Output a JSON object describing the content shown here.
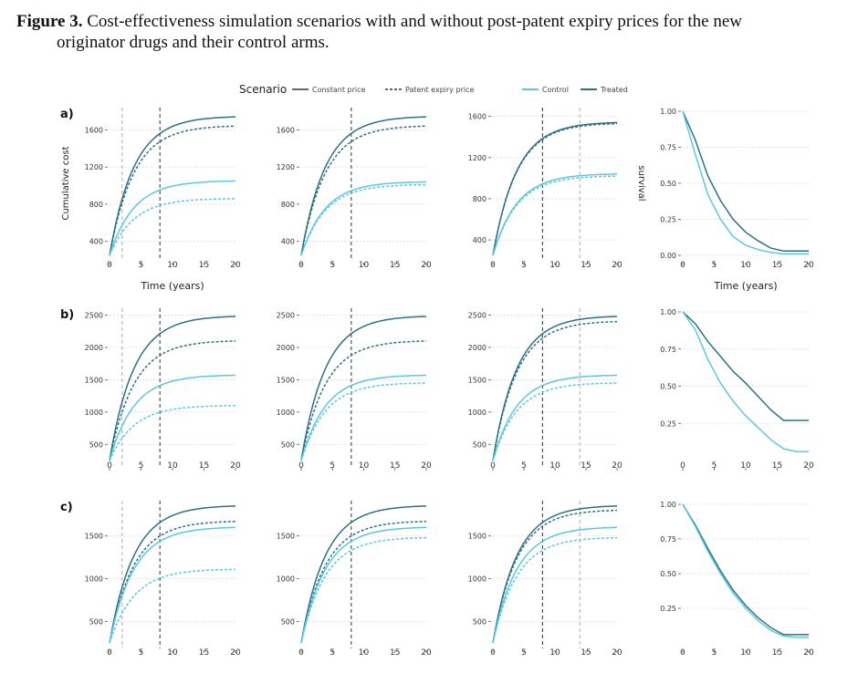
{
  "figure": {
    "label": "Figure 3.",
    "caption_line1": "Cost-effectiveness simulation scenarios with and without post-patent expiry prices for the new",
    "caption_line2": "originator drugs and their control arms."
  },
  "legend": {
    "title": "Scenario",
    "linetype_items": [
      "Constant price",
      "Patent expiry price"
    ],
    "color_items": [
      "Control",
      "Treated"
    ]
  },
  "colors": {
    "control": "#5ac8e2",
    "treated": "#2f6f86",
    "vline_dark": "#444444",
    "vline_light": "#b4b4b4",
    "grid": "#cfcfcf"
  },
  "chart_data": {
    "type": "line",
    "xlabel": "Time (years)",
    "xlim": [
      0,
      20
    ],
    "x_ticks": [
      0,
      5,
      10,
      15,
      20
    ],
    "x_tick_labels": [
      "0",
      "5",
      "10",
      "15",
      "20"
    ],
    "rows": [
      {
        "label": "a)",
        "cost_ylabel": "Cumulative cost",
        "survival_ylabel": "survival",
        "panels": [
          {
            "ylim": [
              250,
              1800
            ],
            "yticks": [
              400,
              800,
              1200,
              1600
            ],
            "ytick_labels": [
              "400",
              "800",
              "1200",
              "1600"
            ],
            "vlines": {
              "dark": 8,
              "light": 2
            },
            "series": [
              {
                "arm": "treated",
                "price": "constant",
                "end": 1740
              },
              {
                "arm": "treated",
                "price": "patent",
                "end": 1640
              },
              {
                "arm": "control",
                "price": "constant",
                "end": 1050
              },
              {
                "arm": "control",
                "price": "patent",
                "end": 860
              }
            ]
          },
          {
            "ylim": [
              250,
              1800
            ],
            "yticks": [
              400,
              800,
              1200,
              1600
            ],
            "ytick_labels": [
              "400",
              "800",
              "1200",
              "1600"
            ],
            "vlines": {
              "dark": 8
            },
            "series": [
              {
                "arm": "treated",
                "price": "constant",
                "end": 1740
              },
              {
                "arm": "treated",
                "price": "patent",
                "end": 1640
              },
              {
                "arm": "control",
                "price": "constant",
                "end": 1040
              },
              {
                "arm": "control",
                "price": "patent",
                "end": 1010
              }
            ]
          },
          {
            "ylim": [
              250,
              1650
            ],
            "yticks": [
              400,
              800,
              1200,
              1600
            ],
            "ytick_labels": [
              "400",
              "800",
              "1200",
              "1600"
            ],
            "vlines": {
              "dark": 8,
              "light": 14
            },
            "series": [
              {
                "arm": "treated",
                "price": "constant",
                "end": 1540
              },
              {
                "arm": "treated",
                "price": "patent",
                "end": 1530
              },
              {
                "arm": "control",
                "price": "constant",
                "end": 1040
              },
              {
                "arm": "control",
                "price": "patent",
                "end": 1020
              }
            ]
          }
        ],
        "survival": {
          "ylim": [
            0,
            1
          ],
          "yticks": [
            0,
            0.25,
            0.5,
            0.75,
            1
          ],
          "ytick_labels": [
            "0.00",
            "0.25",
            "0.50",
            "0.75",
            "1.00"
          ],
          "show_xlabel": true,
          "treated": [
            [
              0,
              1
            ],
            [
              2,
              0.8
            ],
            [
              4,
              0.55
            ],
            [
              6,
              0.38
            ],
            [
              8,
              0.25
            ],
            [
              10,
              0.16
            ],
            [
              12,
              0.1
            ],
            [
              14,
              0.05
            ],
            [
              16,
              0.03
            ],
            [
              18,
              0.03
            ],
            [
              20,
              0.03
            ]
          ],
          "control": [
            [
              0,
              1
            ],
            [
              2,
              0.7
            ],
            [
              4,
              0.42
            ],
            [
              6,
              0.25
            ],
            [
              8,
              0.13
            ],
            [
              10,
              0.07
            ],
            [
              12,
              0.04
            ],
            [
              14,
              0.02
            ],
            [
              16,
              0.01
            ],
            [
              18,
              0.01
            ],
            [
              20,
              0.01
            ]
          ]
        }
      },
      {
        "label": "b)",
        "panels": [
          {
            "ylim": [
              250,
              2550
            ],
            "yticks": [
              500,
              1000,
              1500,
              2000,
              2500
            ],
            "ytick_labels": [
              "500",
              "1000",
              "1500",
              "2000",
              "2500"
            ],
            "vlines": {
              "dark": 8,
              "light": 2
            },
            "series": [
              {
                "arm": "treated",
                "price": "constant",
                "end": 2480
              },
              {
                "arm": "treated",
                "price": "patent",
                "end": 2100
              },
              {
                "arm": "control",
                "price": "constant",
                "end": 1570
              },
              {
                "arm": "control",
                "price": "patent",
                "end": 1100
              }
            ]
          },
          {
            "ylim": [
              250,
              2550
            ],
            "yticks": [
              500,
              1000,
              1500,
              2000,
              2500
            ],
            "ytick_labels": [
              "500",
              "1000",
              "1500",
              "2000",
              "2500"
            ],
            "vlines": {
              "dark": 8
            },
            "series": [
              {
                "arm": "treated",
                "price": "constant",
                "end": 2480
              },
              {
                "arm": "treated",
                "price": "patent",
                "end": 2100
              },
              {
                "arm": "control",
                "price": "constant",
                "end": 1570
              },
              {
                "arm": "control",
                "price": "patent",
                "end": 1450
              }
            ]
          },
          {
            "ylim": [
              250,
              2550
            ],
            "yticks": [
              500,
              1000,
              1500,
              2000,
              2500
            ],
            "ytick_labels": [
              "500",
              "1000",
              "1500",
              "2000",
              "2500"
            ],
            "vlines": {
              "dark": 8,
              "light": 14
            },
            "series": [
              {
                "arm": "treated",
                "price": "constant",
                "end": 2480
              },
              {
                "arm": "treated",
                "price": "patent",
                "end": 2400
              },
              {
                "arm": "control",
                "price": "constant",
                "end": 1570
              },
              {
                "arm": "control",
                "price": "patent",
                "end": 1450
              }
            ]
          }
        ],
        "survival": {
          "ylim": [
            0,
            1
          ],
          "yticks": [
            0.25,
            0.5,
            0.75,
            1
          ],
          "ytick_labels": [
            "0.25",
            "0.50",
            "0.75",
            "1.00"
          ],
          "show_xlabel": false,
          "treated": [
            [
              0,
              1
            ],
            [
              2,
              0.92
            ],
            [
              4,
              0.8
            ],
            [
              6,
              0.7
            ],
            [
              8,
              0.6
            ],
            [
              10,
              0.52
            ],
            [
              12,
              0.43
            ],
            [
              14,
              0.34
            ],
            [
              16,
              0.27
            ],
            [
              18,
              0.27
            ],
            [
              20,
              0.27
            ]
          ],
          "control": [
            [
              0,
              1
            ],
            [
              2,
              0.88
            ],
            [
              4,
              0.68
            ],
            [
              6,
              0.52
            ],
            [
              8,
              0.4
            ],
            [
              10,
              0.3
            ],
            [
              12,
              0.22
            ],
            [
              14,
              0.14
            ],
            [
              16,
              0.08
            ],
            [
              18,
              0.06
            ],
            [
              20,
              0.06
            ]
          ]
        }
      },
      {
        "label": "c)",
        "panels": [
          {
            "ylim": [
              250,
              1870
            ],
            "yticks": [
              500,
              1000,
              1500
            ],
            "ytick_labels": [
              "500",
              "1000",
              "1500"
            ],
            "vlines": {
              "dark": 8,
              "light": 2
            },
            "series": [
              {
                "arm": "treated",
                "price": "constant",
                "end": 1850
              },
              {
                "arm": "treated",
                "price": "patent",
                "end": 1670
              },
              {
                "arm": "control",
                "price": "constant",
                "end": 1600
              },
              {
                "arm": "control",
                "price": "patent",
                "end": 1110
              }
            ]
          },
          {
            "ylim": [
              250,
              1870
            ],
            "yticks": [
              500,
              1000,
              1500
            ],
            "ytick_labels": [
              "500",
              "1000",
              "1500"
            ],
            "vlines": {
              "dark": 8
            },
            "series": [
              {
                "arm": "treated",
                "price": "constant",
                "end": 1850
              },
              {
                "arm": "treated",
                "price": "patent",
                "end": 1670
              },
              {
                "arm": "control",
                "price": "constant",
                "end": 1600
              },
              {
                "arm": "control",
                "price": "patent",
                "end": 1480
              }
            ]
          },
          {
            "ylim": [
              250,
              1870
            ],
            "yticks": [
              500,
              1000,
              1500
            ],
            "ytick_labels": [
              "500",
              "1000",
              "1500"
            ],
            "vlines": {
              "dark": 8,
              "light": 14
            },
            "series": [
              {
                "arm": "treated",
                "price": "constant",
                "end": 1850
              },
              {
                "arm": "treated",
                "price": "patent",
                "end": 1800
              },
              {
                "arm": "control",
                "price": "constant",
                "end": 1600
              },
              {
                "arm": "control",
                "price": "patent",
                "end": 1480
              }
            ]
          }
        ],
        "survival": {
          "ylim": [
            0,
            1
          ],
          "yticks": [
            0.25,
            0.5,
            0.75,
            1
          ],
          "ytick_labels": [
            "0.25",
            "0.50",
            "0.75",
            "1.00"
          ],
          "show_xlabel": false,
          "treated": [
            [
              0,
              1
            ],
            [
              2,
              0.85
            ],
            [
              4,
              0.68
            ],
            [
              6,
              0.52
            ],
            [
              8,
              0.38
            ],
            [
              10,
              0.27
            ],
            [
              12,
              0.18
            ],
            [
              14,
              0.11
            ],
            [
              16,
              0.06
            ],
            [
              18,
              0.06
            ],
            [
              20,
              0.06
            ]
          ],
          "control": [
            [
              0,
              1
            ],
            [
              2,
              0.84
            ],
            [
              4,
              0.66
            ],
            [
              6,
              0.5
            ],
            [
              8,
              0.36
            ],
            [
              10,
              0.25
            ],
            [
              12,
              0.16
            ],
            [
              14,
              0.09
            ],
            [
              16,
              0.05
            ],
            [
              18,
              0.04
            ],
            [
              20,
              0.04
            ]
          ]
        }
      }
    ]
  }
}
